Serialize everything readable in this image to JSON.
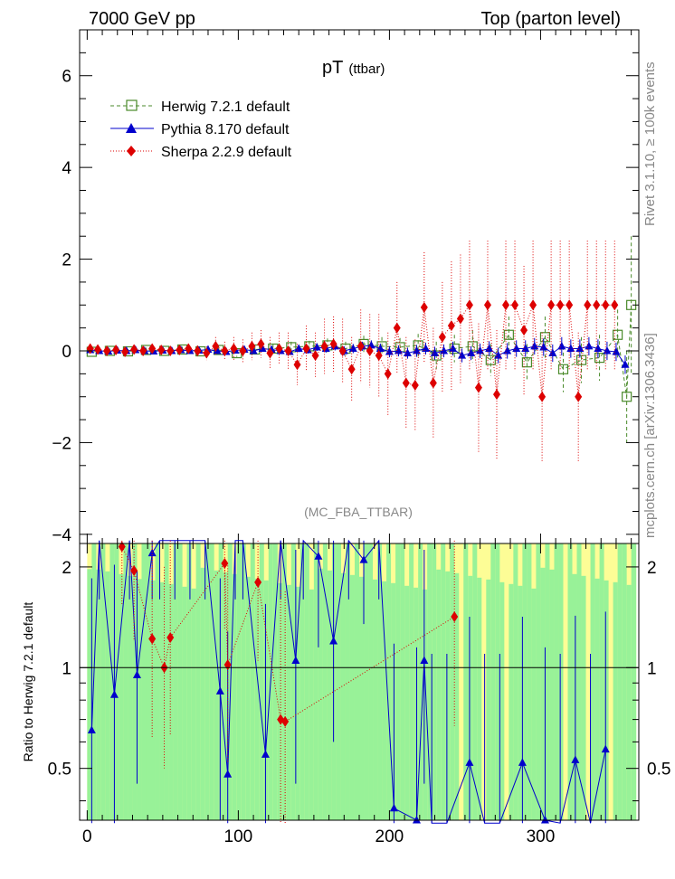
{
  "header": {
    "left": "7000 GeV pp",
    "right": "Top (parton level)"
  },
  "side_labels": {
    "rivet": "Rivet 3.1.10, ≥ 100k events",
    "mcplots": "mcplots.cern.ch [arXiv:1306.3436]"
  },
  "chart_data": {
    "type": "scatter",
    "title": "pT",
    "title_sub": "(ttbar)",
    "analysis_tag": "(MC_FBA_TTBAR)",
    "top_panel": {
      "ylim": [
        -4.2,
        7.0
      ],
      "y_ticks": [
        -4,
        -2,
        0,
        2,
        4,
        6
      ],
      "y_tick_labels": [
        "−4",
        "−2",
        "0",
        "2",
        "4",
        "6"
      ],
      "xlim": [
        -5,
        365
      ]
    },
    "ratio_panel": {
      "ylabel": "Ratio to Herwig 7.2.1 default",
      "ylim": [
        0.35,
        2.35
      ],
      "y_ticks": [
        0.5,
        1,
        2
      ],
      "y_tick_labels": [
        "0.5",
        "1",
        "2"
      ],
      "reference_line": 1
    },
    "x_ticks": [
      0,
      100,
      200,
      300
    ],
    "x_tick_labels": [
      "0",
      "100",
      "200",
      "300"
    ],
    "series": [
      {
        "name": "Herwig 7.2.1 default",
        "color": "#4a8a2a",
        "marker": "open-square",
        "line": "dashed",
        "x": [
          3,
          15,
          27,
          39,
          51,
          63,
          75,
          87,
          99,
          111,
          123,
          135,
          147,
          159,
          171,
          183,
          195,
          207,
          219,
          231,
          243,
          255,
          267,
          279,
          291,
          303,
          315,
          327,
          339,
          351,
          357,
          360
        ],
        "y": [
          -0.02,
          0.0,
          -0.01,
          0.02,
          0.0,
          0.03,
          -0.01,
          0.02,
          -0.05,
          0.03,
          0.05,
          0.08,
          0.1,
          0.12,
          0.05,
          0.15,
          0.1,
          0.08,
          0.12,
          -0.1,
          0.05,
          0.1,
          -0.2,
          0.35,
          -0.25,
          0.3,
          -0.4,
          -0.2,
          -0.15,
          0.35,
          -1.0,
          1.0
        ],
        "err": [
          0.05,
          0.05,
          0.05,
          0.05,
          0.05,
          0.06,
          0.06,
          0.07,
          0.08,
          0.08,
          0.1,
          0.12,
          0.12,
          0.15,
          0.15,
          0.18,
          0.2,
          0.2,
          0.25,
          0.3,
          0.3,
          0.35,
          0.35,
          0.4,
          0.4,
          0.45,
          0.5,
          0.5,
          0.5,
          0.55,
          1.0,
          1.5
        ]
      },
      {
        "name": "Pythia 8.170 default",
        "color": "#0000cc",
        "marker": "filled-triangle",
        "line": "solid",
        "x": [
          2,
          8,
          14,
          20,
          26,
          32,
          38,
          44,
          50,
          56,
          62,
          68,
          74,
          80,
          86,
          92,
          98,
          104,
          110,
          116,
          122,
          128,
          134,
          140,
          146,
          152,
          158,
          164,
          170,
          176,
          182,
          188,
          194,
          200,
          206,
          212,
          218,
          224,
          230,
          236,
          242,
          248,
          254,
          260,
          266,
          272,
          278,
          284,
          290,
          296,
          302,
          308,
          314,
          320,
          326,
          332,
          338,
          344,
          350,
          356
        ],
        "y": [
          0.02,
          0.0,
          -0.01,
          0.01,
          0.0,
          0.02,
          0.0,
          -0.01,
          0.01,
          0.0,
          0.02,
          0.0,
          0.01,
          0.03,
          0.0,
          -0.02,
          0.01,
          0.03,
          0.0,
          0.05,
          0.03,
          0.0,
          -0.02,
          0.05,
          0.02,
          0.08,
          0.05,
          0.1,
          0.0,
          0.05,
          0.1,
          0.12,
          0.05,
          -0.02,
          0.0,
          -0.05,
          0.0,
          0.05,
          -0.05,
          0.0,
          0.05,
          -0.1,
          -0.05,
          0.0,
          0.05,
          -0.1,
          0.0,
          0.05,
          0.05,
          0.1,
          0.08,
          -0.05,
          0.1,
          0.05,
          0.05,
          0.1,
          0.05,
          0.0,
          -0.02,
          -0.3
        ],
        "err": [
          0.03,
          0.03,
          0.03,
          0.03,
          0.03,
          0.03,
          0.03,
          0.04,
          0.04,
          0.04,
          0.04,
          0.04,
          0.05,
          0.05,
          0.05,
          0.05,
          0.05,
          0.06,
          0.06,
          0.06,
          0.07,
          0.07,
          0.07,
          0.08,
          0.08,
          0.08,
          0.09,
          0.09,
          0.1,
          0.1,
          0.1,
          0.11,
          0.11,
          0.12,
          0.12,
          0.12,
          0.13,
          0.13,
          0.14,
          0.14,
          0.15,
          0.15,
          0.15,
          0.16,
          0.16,
          0.17,
          0.17,
          0.18,
          0.18,
          0.18,
          0.19,
          0.19,
          0.2,
          0.2,
          0.2,
          0.2,
          0.2,
          0.2,
          0.2,
          0.2
        ]
      },
      {
        "name": "Sherpa 2.2.9 default",
        "color": "#dd0000",
        "marker": "filled-diamond",
        "line": "dotted",
        "x": [
          2,
          7,
          13,
          19,
          25,
          31,
          37,
          43,
          49,
          55,
          61,
          67,
          73,
          79,
          85,
          91,
          97,
          103,
          109,
          115,
          121,
          127,
          133,
          139,
          145,
          151,
          157,
          163,
          169,
          175,
          181,
          187,
          193,
          199,
          205,
          211,
          217,
          223,
          229,
          235,
          241,
          247,
          253,
          259,
          265,
          271,
          277,
          283,
          289,
          295,
          301,
          307,
          313,
          319,
          325,
          331,
          337,
          343,
          349
        ],
        "y": [
          0.05,
          0.03,
          0.0,
          0.02,
          -0.02,
          0.03,
          0.0,
          0.05,
          0.02,
          0.0,
          0.02,
          0.05,
          0.0,
          -0.05,
          0.1,
          0.0,
          0.05,
          0.0,
          0.1,
          0.15,
          -0.05,
          0.05,
          0.0,
          -0.3,
          0.05,
          -0.1,
          0.1,
          0.15,
          0.0,
          -0.4,
          0.1,
          0.0,
          -0.1,
          -0.5,
          0.5,
          -0.7,
          -0.75,
          0.95,
          -0.7,
          0.3,
          0.55,
          0.7,
          1.0,
          -0.8,
          1.0,
          -0.95,
          1.0,
          1.0,
          0.45,
          1.0,
          -1.0,
          1.0,
          1.0,
          1.0,
          -1.0,
          1.0,
          1.0,
          1.0,
          1.0
        ],
        "err": [
          0.05,
          0.05,
          0.05,
          0.05,
          0.05,
          0.06,
          0.06,
          0.07,
          0.08,
          0.08,
          0.1,
          0.1,
          0.12,
          0.15,
          0.2,
          0.2,
          0.25,
          0.25,
          0.3,
          0.3,
          0.35,
          0.35,
          0.4,
          0.45,
          0.5,
          0.5,
          0.6,
          0.6,
          0.7,
          0.7,
          0.8,
          0.8,
          0.9,
          0.9,
          1.0,
          1.0,
          1.0,
          1.2,
          1.2,
          1.2,
          1.4,
          1.4,
          1.4,
          1.4,
          1.4,
          1.4,
          1.4,
          1.4,
          1.4,
          1.4,
          1.4,
          1.4,
          1.4,
          1.4,
          1.4,
          1.4,
          1.4,
          1.4,
          1.4
        ]
      }
    ],
    "ratio_series": [
      {
        "name": "Pythia 8.170 default",
        "color": "#0000cc",
        "x": [
          3,
          8,
          18,
          28,
          33,
          43,
          48,
          58,
          68,
          78,
          88,
          93,
          98,
          103,
          118,
          128,
          138,
          143,
          153,
          163,
          173,
          183,
          193,
          203,
          218,
          223,
          228,
          238,
          253,
          263,
          273,
          288,
          303,
          313,
          323,
          333,
          343
        ],
        "y": [
          0.65,
          2.6,
          0.83,
          2.6,
          0.95,
          2.2,
          2.6,
          2.6,
          2.6,
          2.6,
          0.85,
          0.48,
          2.6,
          2.6,
          0.55,
          2.6,
          1.05,
          2.6,
          2.15,
          1.2,
          2.6,
          2.1,
          2.6,
          0.38,
          0.35,
          1.05,
          0.3,
          0.3,
          0.52,
          0.3,
          0.3,
          0.52,
          0.35,
          0.3,
          0.53,
          0.3,
          0.57
        ],
        "err": [
          1.2,
          2.0,
          1.2,
          2.0,
          1.0,
          1.2,
          2.0,
          2.0,
          2.0,
          2.0,
          1.0,
          0.8,
          2.0,
          2.0,
          1.0,
          2.0,
          1.2,
          2.0,
          2.0,
          1.2,
          2.0,
          1.5,
          2.0,
          0.8,
          0.8,
          1.2,
          0.8,
          0.8,
          0.9,
          0.8,
          0.8,
          0.9,
          0.8,
          0.8,
          0.9,
          0.8,
          0.9
        ]
      },
      {
        "name": "Sherpa 2.2.9 default",
        "color": "#dd0000",
        "x": [
          23,
          31,
          43,
          51,
          55,
          91,
          93,
          113,
          128,
          131,
          243
        ],
        "y": [
          2.3,
          1.95,
          1.22,
          1.0,
          1.23,
          2.05,
          1.02,
          1.8,
          0.7,
          0.69,
          1.42
        ],
        "err": [
          1.5,
          1.5,
          1.2,
          1.0,
          1.2,
          1.5,
          1.0,
          1.5,
          1.0,
          1.0,
          1.5
        ]
      }
    ]
  },
  "colors": {
    "band_green": "#98f298",
    "band_yellow": "#fdfd96"
  }
}
